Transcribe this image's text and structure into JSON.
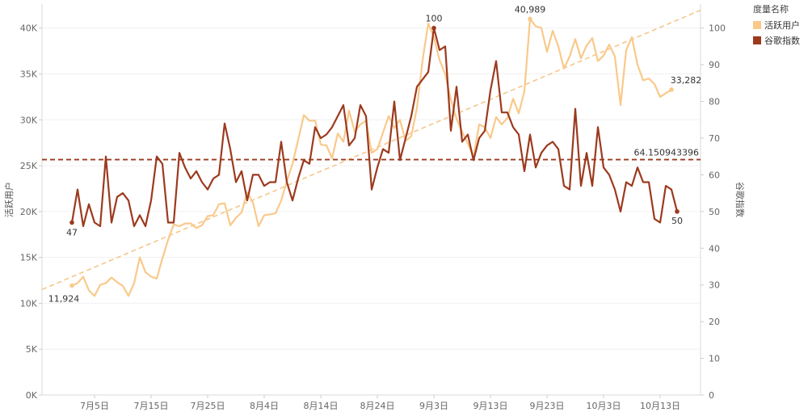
{
  "legend": {
    "title": "度量名称",
    "items": [
      {
        "label": "活跃用户",
        "color": "#F9C98B"
      },
      {
        "label": "谷歌指数",
        "color": "#9C3A1E"
      }
    ]
  },
  "colors": {
    "active_users": "#F9C98B",
    "google_index": "#9C3A1E",
    "trend": "#F6C68A",
    "reference": "#9C3A1E"
  },
  "chart_data": {
    "type": "line",
    "x_tick_labels": [
      "7月5日",
      "7月15日",
      "7月25日",
      "8月4日",
      "8月14日",
      "8月24日",
      "9月3日",
      "9月13日",
      "9月23日",
      "10月3日",
      "10月13日"
    ],
    "x_range": [
      "6月27日",
      "10月21日"
    ],
    "x_start_label": "6月27日",
    "left_axis": {
      "label": "活跃用户",
      "range": [
        0,
        42000
      ],
      "ticks": [
        0,
        5000,
        10000,
        15000,
        20000,
        25000,
        30000,
        35000,
        40000
      ],
      "tick_labels": [
        "0K",
        "5K",
        "10K",
        "15K",
        "20K",
        "25K",
        "30K",
        "35K",
        "40K"
      ]
    },
    "right_axis": {
      "label": "谷歌指数",
      "range": [
        0,
        105
      ],
      "ticks": [
        0,
        10,
        20,
        30,
        40,
        50,
        60,
        70,
        80,
        90,
        100
      ],
      "tick_labels": [
        "0",
        "10",
        "20",
        "30",
        "40",
        "50",
        "60",
        "70",
        "80",
        "90",
        "100"
      ]
    },
    "grid": "horizontal",
    "series": [
      {
        "name": "活跃用户",
        "axis": "left",
        "start_date": "7月1日",
        "values": [
          11924,
          12200,
          12900,
          11400,
          10800,
          12000,
          12200,
          12800,
          12300,
          11900,
          10800,
          12200,
          15000,
          13400,
          12900,
          12700,
          14900,
          16900,
          18600,
          18400,
          18700,
          18700,
          18200,
          18500,
          19500,
          19600,
          20800,
          20900,
          18500,
          19300,
          19900,
          22100,
          21000,
          18400,
          19600,
          19700,
          19800,
          21200,
          23300,
          25200,
          27800,
          30500,
          29900,
          29900,
          27300,
          27200,
          25800,
          28500,
          27600,
          31000,
          28700,
          29500,
          29900,
          26400,
          26800,
          28600,
          30400,
          29100,
          30000,
          27700,
          28200,
          31300,
          36500,
          40500,
          39000,
          36500,
          35000,
          32200,
          30100,
          28700,
          27400,
          26000,
          29500,
          29200,
          28000,
          30300,
          29500,
          30200,
          32300,
          30700,
          33100,
          40989,
          40200,
          40000,
          37400,
          39700,
          38000,
          35600,
          36900,
          38800,
          36700,
          38100,
          38900,
          36400,
          37000,
          38200,
          36900,
          31600,
          37600,
          39000,
          36000,
          34300,
          34500,
          33900,
          32500,
          32900,
          33282
        ]
      },
      {
        "name": "谷歌指数",
        "axis": "right",
        "start_date": "7月1日",
        "values": [
          47,
          56,
          46,
          52,
          47,
          46,
          65,
          47,
          54,
          55,
          53,
          46,
          49,
          46,
          53,
          65,
          63,
          47,
          47,
          66,
          62,
          59,
          61,
          58,
          56,
          59,
          60,
          74,
          67,
          58,
          61,
          53,
          60,
          60,
          57,
          58,
          58,
          69,
          58,
          53,
          59,
          64,
          63,
          73,
          70,
          71,
          73,
          76,
          79,
          68,
          70,
          79,
          76,
          56,
          62,
          67,
          66,
          80,
          64,
          70,
          76,
          84,
          86,
          88,
          100,
          94,
          95,
          72,
          84,
          69,
          71,
          64,
          70,
          72,
          83,
          91,
          77,
          77,
          73,
          71,
          61,
          71,
          62,
          66,
          68,
          69,
          67,
          57,
          56,
          78,
          57,
          66,
          57,
          73,
          62,
          60,
          56,
          50,
          58,
          57,
          62,
          58,
          58,
          48,
          47,
          57,
          56,
          50
        ]
      }
    ],
    "trend_line": {
      "series": "活跃用户"
    },
    "reference_line": {
      "axis": "right",
      "value": 64.150943396,
      "label": "64.150943396"
    },
    "point_labels": [
      {
        "series": "活跃用户",
        "index": 0,
        "text": "11,924"
      },
      {
        "series": "活跃用户",
        "index": 81,
        "text": "40,989"
      },
      {
        "series": "活跃用户",
        "index": 106,
        "text": "33,282"
      },
      {
        "series": "谷歌指数",
        "index": 0,
        "text": "47"
      },
      {
        "series": "谷歌指数",
        "index": 64,
        "text": "100"
      },
      {
        "series": "谷歌指数",
        "index": 107,
        "text": "50"
      }
    ]
  }
}
